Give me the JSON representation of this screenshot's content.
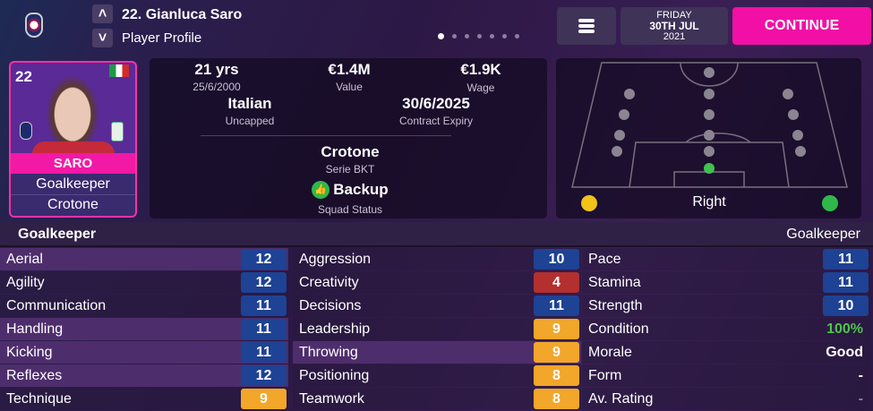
{
  "header": {
    "title": "22. Gianluca Saro",
    "subtitle": "Player Profile",
    "page_dots": 7,
    "active_dot": 1,
    "date": {
      "day": "FRIDAY",
      "date": "30TH JUL",
      "year": "2021"
    },
    "continue_label": "CONTINUE"
  },
  "card": {
    "number": "22",
    "surname": "SARO",
    "position": "Goalkeeper",
    "club": "Crotone",
    "nationality_flag": "Italy"
  },
  "info": {
    "age": "21 yrs",
    "dob": "25/6/2000",
    "value": "€1.4M",
    "value_label": "Value",
    "wage": "€1.9K",
    "wage_label": "Wage",
    "nationality": "Italian",
    "caps": "Uncapped",
    "contract": "30/6/2025",
    "contract_label": "Contract Expiry",
    "club": "Crotone",
    "league": "Serie BKT",
    "status": "Backup",
    "status_label": "Squad Status"
  },
  "pitch": {
    "foot_label": "Right",
    "left_foot_color": "#f2c318",
    "right_foot_color": "#2fb84a",
    "natural_position": "GK"
  },
  "attributes": {
    "left_title": "Goalkeeper",
    "right_title": "Goalkeeper",
    "col1": [
      {
        "name": "Aerial",
        "value": "12",
        "color": "blue",
        "key": true
      },
      {
        "name": "Agility",
        "value": "12",
        "color": "blue"
      },
      {
        "name": "Communication",
        "value": "11",
        "color": "blue"
      },
      {
        "name": "Handling",
        "value": "11",
        "color": "blue",
        "key": true
      },
      {
        "name": "Kicking",
        "value": "11",
        "color": "blue",
        "key": true
      },
      {
        "name": "Reflexes",
        "value": "12",
        "color": "blue",
        "key": true
      },
      {
        "name": "Technique",
        "value": "9",
        "color": "amber"
      }
    ],
    "col2": [
      {
        "name": "Aggression",
        "value": "10",
        "color": "blue"
      },
      {
        "name": "Creativity",
        "value": "4",
        "color": "red"
      },
      {
        "name": "Decisions",
        "value": "11",
        "color": "blue"
      },
      {
        "name": "Leadership",
        "value": "9",
        "color": "amber"
      },
      {
        "name": "Throwing",
        "value": "9",
        "color": "amber",
        "key": true
      },
      {
        "name": "Positioning",
        "value": "8",
        "color": "amber"
      },
      {
        "name": "Teamwork",
        "value": "8",
        "color": "amber"
      }
    ],
    "col3": [
      {
        "name": "Pace",
        "value": "11",
        "color": "blue"
      },
      {
        "name": "Stamina",
        "value": "11",
        "color": "blue"
      },
      {
        "name": "Strength",
        "value": "10",
        "color": "blue"
      },
      {
        "name": "Condition",
        "value": "100%",
        "text": true,
        "tcolor": "#4cc44c"
      },
      {
        "name": "Morale",
        "value": "Good",
        "text": true,
        "tcolor": "#ffffff"
      },
      {
        "name": "Form",
        "value": "-",
        "text": true,
        "tcolor": "#ffffff"
      },
      {
        "name": "Av. Rating",
        "value": "-",
        "text": true,
        "tcolor": "#888888"
      }
    ]
  }
}
